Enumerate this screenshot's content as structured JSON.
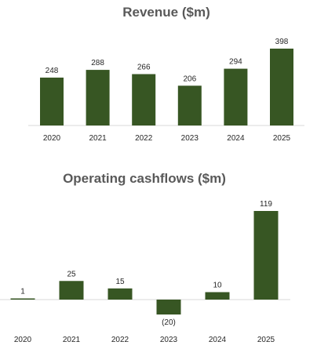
{
  "colors": {
    "bar": "#375623",
    "axis": "#d9d9d9",
    "title": "#595959",
    "label": "#262626"
  },
  "chart_data": [
    {
      "type": "bar",
      "title": "Revenue ($m)",
      "xlabel": "",
      "ylabel": "",
      "categories": [
        "2020",
        "2021",
        "2022",
        "2023",
        "2024",
        "2025"
      ],
      "values": [
        248,
        288,
        266,
        206,
        294,
        398
      ],
      "value_labels": [
        "248",
        "288",
        "266",
        "206",
        "294",
        "398"
      ],
      "ylim": [
        0,
        400
      ],
      "grid": false,
      "legend": "none"
    },
    {
      "type": "bar",
      "title": "Operating cashflows ($m)",
      "xlabel": "",
      "ylabel": "",
      "categories": [
        "2020",
        "2021",
        "2022",
        "2023",
        "2024",
        "2025"
      ],
      "values": [
        1,
        25,
        15,
        -20,
        10,
        119
      ],
      "value_labels": [
        "1",
        "25",
        "15",
        "(20)",
        "10",
        "119"
      ],
      "ylim": [
        -25,
        120
      ],
      "grid": false,
      "legend": "none"
    }
  ]
}
